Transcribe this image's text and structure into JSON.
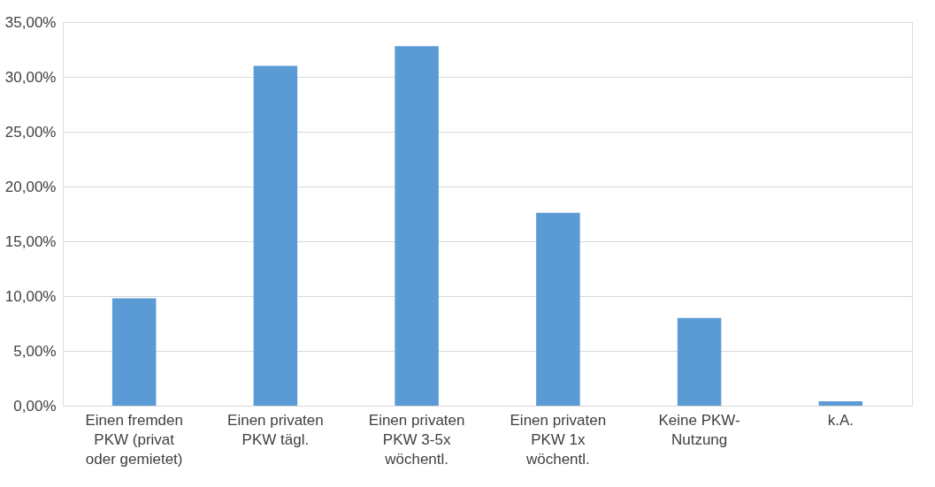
{
  "chart_data": {
    "type": "bar",
    "categories": [
      "Einen fremden PKW (privat oder gemietet)",
      "Einen privaten PKW tägl.",
      "Einen privaten PKW 3-5x wöchentl.",
      "Einen privaten PKW 1x wöchentl.",
      "Keine PKW-Nutzung",
      "k.A."
    ],
    "values": [
      9.8,
      31.0,
      32.8,
      17.6,
      8.0,
      0.4
    ],
    "color": "#5b9bd5",
    "ylim": [
      0,
      35
    ],
    "yticks": [
      {
        "value": 0,
        "label": "0,00%"
      },
      {
        "value": 5,
        "label": "5,00%"
      },
      {
        "value": 10,
        "label": "10,00%"
      },
      {
        "value": 15,
        "label": "15,00%"
      },
      {
        "value": 20,
        "label": "20,00%"
      },
      {
        "value": 25,
        "label": "25,00%"
      },
      {
        "value": 30,
        "label": "30,00%"
      },
      {
        "value": 35,
        "label": "35,00%"
      }
    ],
    "grid": "y"
  }
}
